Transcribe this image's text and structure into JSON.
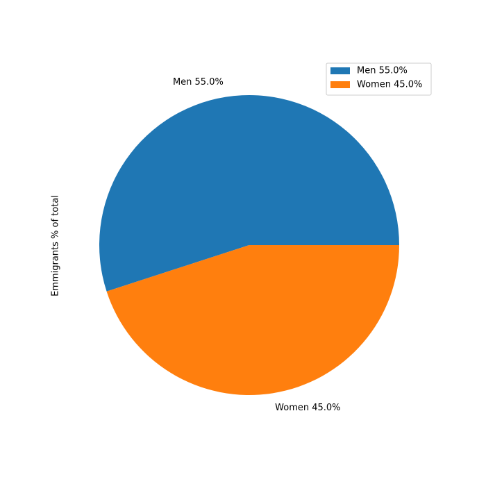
{
  "chart_data": {
    "type": "pie",
    "title": "",
    "ylabel": "Emmigrants % of total",
    "categories": [
      "Men",
      "Women"
    ],
    "values": [
      55.0,
      45.0
    ],
    "slice_labels": [
      "Men 55.0%",
      "Women 45.0%"
    ],
    "legend": {
      "placement": "top-right",
      "entries": [
        "Men 55.0%",
        "Women 45.0%"
      ]
    },
    "colors": [
      "#1f77b4",
      "#ff7f0e"
    ]
  }
}
